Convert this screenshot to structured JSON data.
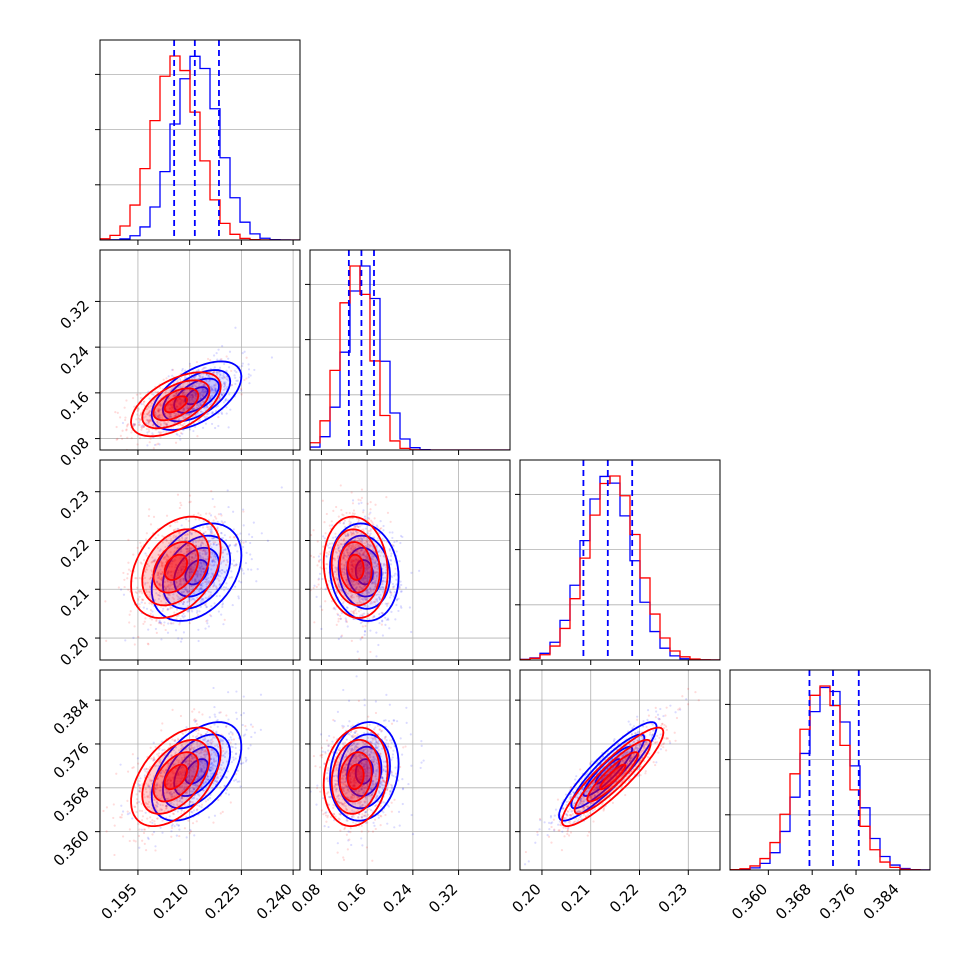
{
  "chart_data": {
    "type": "corner",
    "series": [
      {
        "name": "",
        "color": "#0000ff"
      },
      {
        "name": "",
        "color": "#ff0000"
      }
    ],
    "grid": true,
    "params": [
      {
        "range": [
          0.184,
          0.242
        ],
        "ticks": [
          "0.195",
          "0.210",
          "0.225",
          "0.240"
        ],
        "tickvals": [
          0.195,
          0.21,
          0.225,
          0.24
        ],
        "blue": {
          "mean": 0.212,
          "sd": 0.0065
        },
        "red": {
          "mean": 0.206,
          "sd": 0.0065
        },
        "quantile_lines": [
          0.2055,
          0.2115,
          0.2185
        ]
      },
      {
        "range": [
          0.06,
          0.41
        ],
        "ticks": [
          "0.08",
          "0.16",
          "0.24",
          "0.32"
        ],
        "tickvals": [
          0.08,
          0.16,
          0.24,
          0.32
        ],
        "blue": {
          "mean": 0.155,
          "sd": 0.03
        },
        "red": {
          "mean": 0.14,
          "sd": 0.028
        },
        "quantile_lines": [
          0.128,
          0.15,
          0.172
        ]
      },
      {
        "range": [
          0.1955,
          0.2365
        ],
        "ticks": [
          "0.20",
          "0.21",
          "0.22",
          "0.23"
        ],
        "tickvals": [
          0.2,
          0.21,
          0.22,
          0.23
        ],
        "blue": {
          "mean": 0.2135,
          "sd": 0.005
        },
        "red": {
          "mean": 0.2145,
          "sd": 0.0052
        },
        "quantile_lines": [
          0.2085,
          0.2135,
          0.2185
        ]
      },
      {
        "range": [
          0.353,
          0.3895
        ],
        "ticks": [
          "0.360",
          "0.368",
          "0.376",
          "0.384"
        ],
        "tickvals": [
          0.36,
          0.368,
          0.376,
          0.384
        ],
        "blue": {
          "mean": 0.371,
          "sd": 0.0045
        },
        "red": {
          "mean": 0.37,
          "sd": 0.0045
        },
        "quantile_lines": [
          0.3675,
          0.3718,
          0.3765
        ]
      }
    ],
    "correlations": {
      "1_0": 0.55,
      "2_0": 0.35,
      "2_1": -0.1,
      "3_0": 0.5,
      "3_1": 0.15,
      "3_2": 0.9
    }
  }
}
